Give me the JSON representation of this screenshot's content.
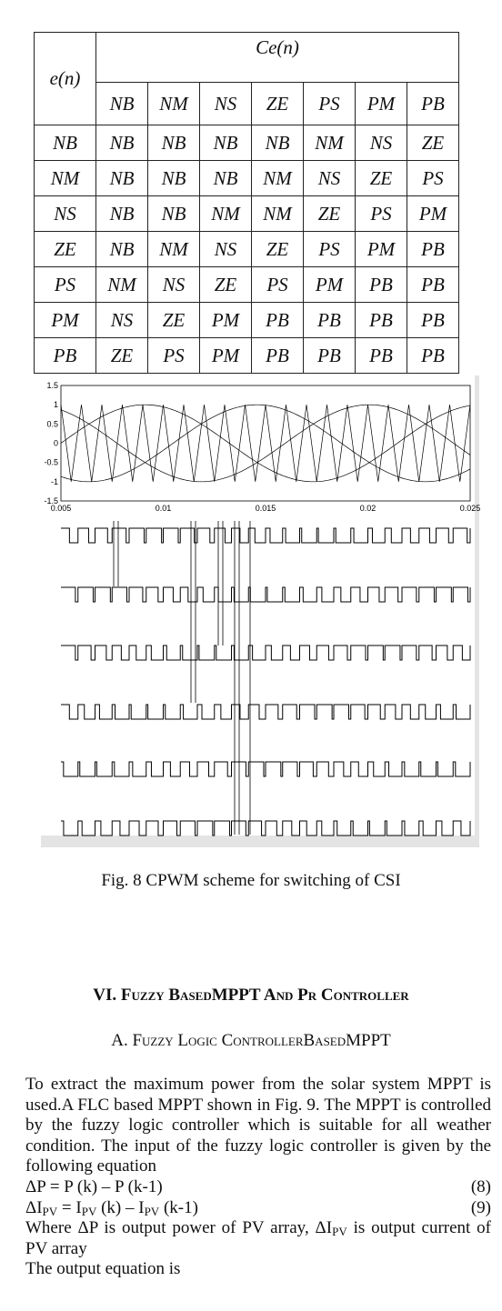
{
  "table": {
    "row_header": "e(n)",
    "column_group": "Ce(n)",
    "columns": [
      "NB",
      "NM",
      "NS",
      "ZE",
      "PS",
      "PM",
      "PB"
    ],
    "rows": [
      [
        "NB",
        "NB",
        "NB",
        "NB",
        "NB",
        "NM",
        "NS",
        "ZE"
      ],
      [
        "NM",
        "NB",
        "NB",
        "NB",
        "NM",
        "NS",
        "ZE",
        "PS"
      ],
      [
        "NS",
        "NB",
        "NB",
        "NM",
        "NM",
        "ZE",
        "PS",
        "PM"
      ],
      [
        "ZE",
        "NB",
        "NM",
        "NS",
        "ZE",
        "PS",
        "PM",
        "PB"
      ],
      [
        "PS",
        "NM",
        "NS",
        "ZE",
        "PS",
        "PM",
        "PB",
        "PB"
      ],
      [
        "PM",
        "NS",
        "ZE",
        "PM",
        "PB",
        "PB",
        "PB",
        "PB"
      ],
      [
        "PB",
        "ZE",
        "PS",
        "PM",
        "PB",
        "PB",
        "PB",
        "PB"
      ]
    ]
  },
  "figure": {
    "y_tick_labels": [
      "1.5",
      "1",
      "0.5",
      "0",
      "-0.5",
      "-1",
      "-1.5"
    ],
    "x_tick_labels": [
      "0.005",
      "0.01",
      "0.015",
      "0.02",
      "0.025"
    ],
    "caption": "Fig. 8 CPWM scheme for switching of CSI"
  },
  "section": {
    "heading": "VI. Fuzzy BasedMPPT And Pr Controller",
    "subheading": "A. Fuzzy Logic ControllerBasedMPPT",
    "paragraph": "To extract the maximum power from the solar system MPPT is used.A FLC based MPPT shown in Fig. 9. The MPPT is controlled by the fuzzy logic controller which is suitable for all weather condition. The input of the fuzzy logic controller is given by the following equation",
    "eq1": {
      "text": "ΔP = P (k) – P (k-1)",
      "number": "(8)"
    },
    "eq2": {
      "parts": [
        "ΔI",
        "PV",
        " = I",
        "PV",
        " (k) – I",
        "PV",
        " (k-1)"
      ],
      "number": "(9)"
    },
    "where": [
      "Where ΔP is output power of PV array, ΔI",
      "PV",
      " is output current of PV array"
    ],
    "output": "The output equation is"
  }
}
